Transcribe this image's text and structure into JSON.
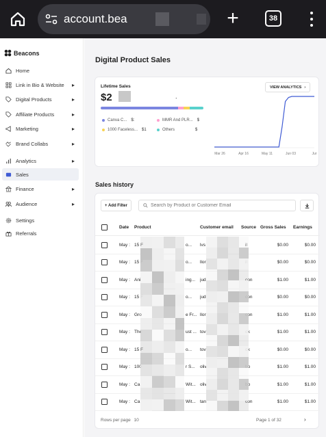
{
  "browser": {
    "url": "account.bea",
    "tab_count": "38",
    "icons": [
      "home-icon",
      "site-settings-icon",
      "plus-icon",
      "tabs-icon",
      "overflow-menu-icon"
    ]
  },
  "sidebar": {
    "brand": "Beacons",
    "items": [
      {
        "label": "Home",
        "icon": "home-icon",
        "chevron": false
      },
      {
        "label": "Link in Bio & Website",
        "icon": "link-in-bio-icon",
        "chevron": true
      },
      {
        "label": "Digital Products",
        "icon": "tag-icon",
        "chevron": true
      },
      {
        "label": "Affiliate Products",
        "icon": "tag-icon",
        "chevron": true
      },
      {
        "label": "Marketing",
        "icon": "megaphone-icon",
        "chevron": true
      },
      {
        "label": "Brand Collabs",
        "icon": "handshake-icon",
        "chevron": true
      },
      {
        "label": "Analytics",
        "icon": "bar-chart-icon",
        "chevron": true
      },
      {
        "label": "Sales",
        "icon": "wallet-icon",
        "chevron": false,
        "active": true
      },
      {
        "label": "Finance",
        "icon": "bank-icon",
        "chevron": true
      },
      {
        "label": "Audience",
        "icon": "people-icon",
        "chevron": true
      },
      {
        "label": "Settings",
        "icon": "gear-icon",
        "chevron": false
      },
      {
        "label": "Referrals",
        "icon": "gift-icon",
        "chevron": false
      }
    ]
  },
  "main": {
    "title": "Digital Product Sales",
    "lifetime_label": "Lifetime Sales",
    "lifetime_value": "$2",
    "lifetime_dot": ".",
    "breakdown": [
      {
        "label": "Canva C...",
        "amount": "$:",
        "color": "#7b86e0"
      },
      {
        "label": "MMR And PLR...",
        "amount": "$",
        "color": "#ff9fcf"
      },
      {
        "label": "1000 Faceless...",
        "amount": "$1",
        "color": "#f7d354"
      },
      {
        "label": "Others",
        "amount": "$",
        "color": "#59d1cc"
      }
    ],
    "view_analytics": "VIEW ANALYTICS",
    "sales_history_title": "Sales history",
    "add_filter": "+ Add Filter",
    "search_placeholder": "Search by Product or Customer Email",
    "columns": {
      "date": "Date",
      "product": "Product",
      "email": "Customer email",
      "source": "Source",
      "gross": "Gross Sales",
      "earnings": "Earnings"
    },
    "rows": [
      {
        "date": "May :",
        "product": "15 F",
        "product_tail": "o...",
        "email": "lvs",
        "source": "il",
        "gross": "$0.00",
        "earnings": "$0.00"
      },
      {
        "date": "May :",
        "product": "15 F",
        "product_tail": "o...",
        "email": "llor",
        "source": "il",
        "gross": "$0.00",
        "earnings": "$0.00"
      },
      {
        "date": "May :",
        "product": "Ani",
        "product_tail": "ing...",
        "email": "jud",
        "source": "con",
        "gross": "$1.00",
        "earnings": "$1.00"
      },
      {
        "date": "May :",
        "product": "15 F",
        "product_tail": "o...",
        "email": "jud",
        "source": "con",
        "gross": "$0.00",
        "earnings": "$0.00"
      },
      {
        "date": "May :",
        "product": "Gro",
        "product_tail": "e Fr...",
        "email": "llor",
        "source": "con",
        "gross": "$1.00",
        "earnings": "$1.00"
      },
      {
        "date": "May :",
        "product": "The",
        "product_tail": "ust ...",
        "email": "tov",
        "source": "ok",
        "gross": "$1.00",
        "earnings": "$1.00"
      },
      {
        "date": "May :",
        "product": "15 F",
        "product_tail": "o...",
        "email": "tov",
        "source": "ok",
        "gross": "$0.00",
        "earnings": "$0.00"
      },
      {
        "date": "May :",
        "product": "100",
        "product_tail": "r S...",
        "email": "oliv",
        "source": "bo",
        "gross": "$1.00",
        "earnings": "$1.00"
      },
      {
        "date": "May :",
        "product": "Ca",
        "product_tail": "Wit...",
        "email": "oliv",
        "source": "bo",
        "gross": "$1.00",
        "earnings": "$1.00"
      },
      {
        "date": "May :",
        "product": "Ca",
        "product_tail": "Wit...",
        "email": "tan",
        "source": "con",
        "gross": "$1.00",
        "earnings": "$1.00"
      }
    ],
    "rows_per_page_label": "Rows per page",
    "rows_per_page_value": "10",
    "page_indicator": "Page 1 of 32"
  },
  "chart_data": {
    "type": "line",
    "x_ticks": [
      "Mar 26",
      "Apr 16",
      "May 11",
      "Jun 03",
      "Jur"
    ],
    "series": [
      {
        "values": [
          0,
          0,
          0,
          0,
          0,
          0,
          0,
          0,
          0,
          0,
          0,
          0,
          0,
          0,
          0,
          0,
          0,
          0,
          0,
          0,
          0,
          0.4,
          0.9,
          0.98,
          1,
          1,
          1,
          1,
          1,
          1,
          1,
          1
        ]
      }
    ],
    "line_color": "#3f5bd4",
    "grid": false
  }
}
